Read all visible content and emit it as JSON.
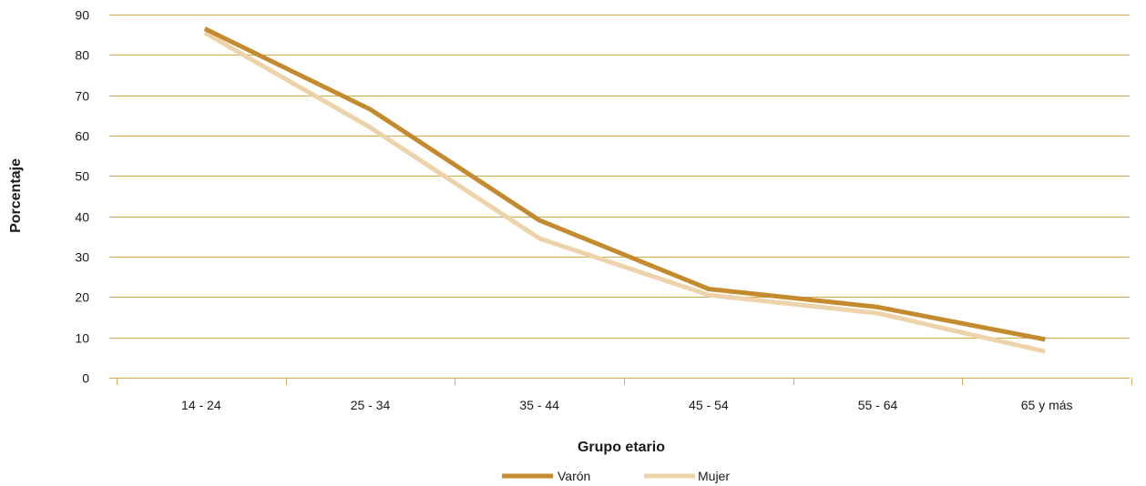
{
  "chart_data": {
    "type": "line",
    "categories": [
      "14 - 24",
      "25 - 34",
      "35 - 44",
      "45 - 54",
      "55 - 64",
      "65 y más"
    ],
    "series": [
      {
        "name": "Varón",
        "values": [
          86.5,
          66.5,
          39,
          22,
          17.5,
          9.5
        ],
        "color": "#c48a2e"
      },
      {
        "name": "Mujer",
        "values": [
          85.5,
          62,
          34.5,
          20.5,
          16,
          6.5
        ],
        "color": "#ecd3aa"
      }
    ],
    "yticks": [
      0,
      10,
      20,
      30,
      40,
      50,
      60,
      70,
      80,
      90
    ],
    "ylim": [
      0,
      90
    ],
    "xlabel": "Grupo etario",
    "ylabel": "Porcentaje",
    "grid": true,
    "grid_color": "#d9a94f",
    "legend_position": "bottom"
  }
}
